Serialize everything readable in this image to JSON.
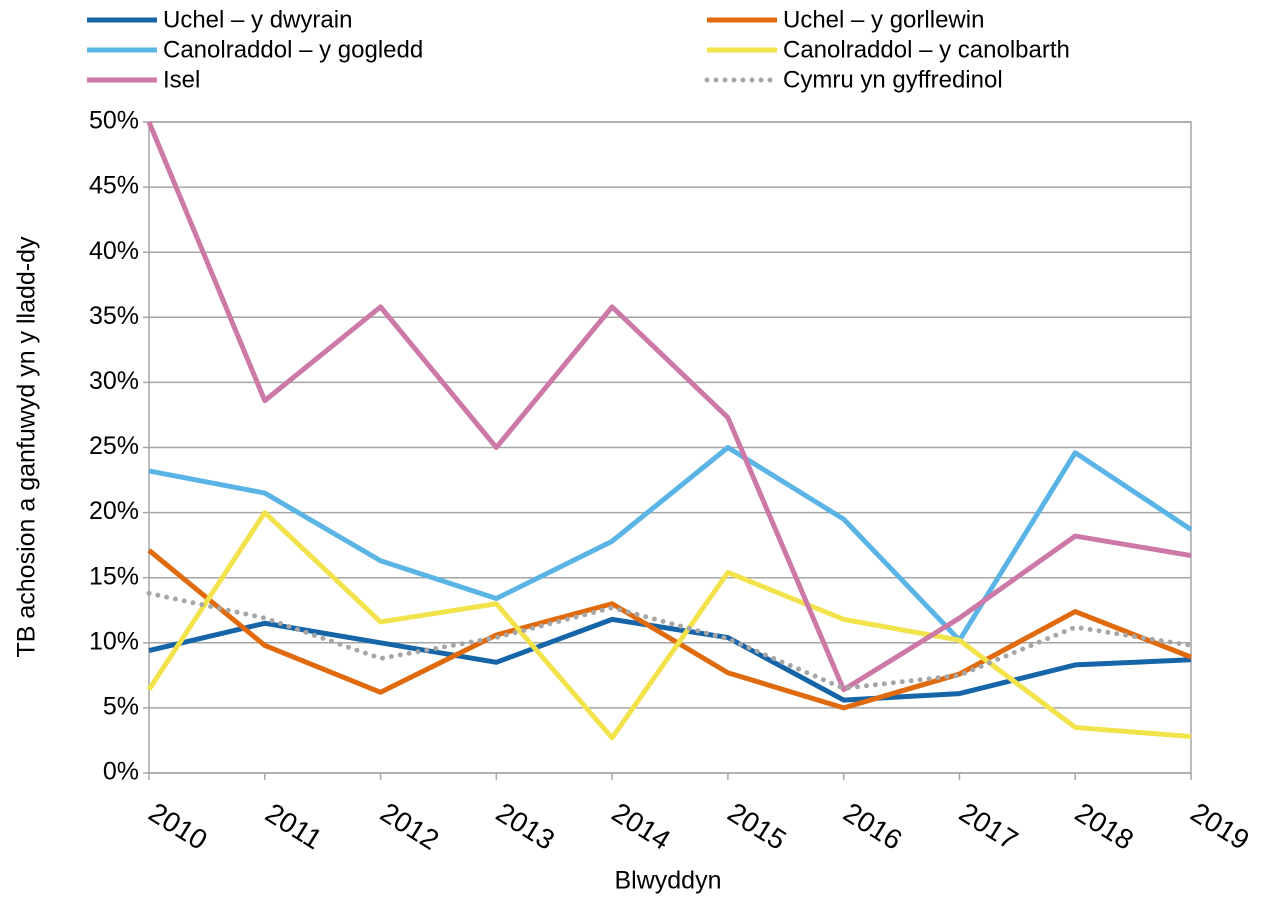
{
  "chart_data": {
    "type": "line",
    "x_label": "Blwyddyn",
    "y_label": "TB achosion a ganfuwyd yn y lladd-dy",
    "categories": [
      "2010",
      "2011",
      "2012",
      "2013",
      "2014",
      "2015",
      "2016",
      "2017",
      "2018",
      "2019"
    ],
    "series": [
      {
        "name": "Uchel – y dwyrain",
        "color": "#1565a8",
        "values": [
          9.4,
          11.5,
          10.0,
          8.5,
          11.8,
          10.4,
          5.6,
          6.1,
          8.3,
          8.7
        ]
      },
      {
        "name": "Uchel – y gorllewin",
        "color": "#e06a0e",
        "values": [
          17.1,
          9.8,
          6.2,
          10.6,
          13.0,
          7.7,
          5.0,
          7.6,
          12.4,
          8.9
        ]
      },
      {
        "name": "Canolraddol – y gogledd",
        "color": "#5ab4e6",
        "values": [
          23.2,
          21.5,
          16.3,
          13.4,
          17.8,
          25.0,
          19.5,
          10.2,
          24.6,
          18.7
        ]
      },
      {
        "name": "Canolraddol – y canolbarth",
        "color": "#f2e34c",
        "values": [
          6.4,
          20.0,
          11.6,
          13.0,
          2.7,
          15.4,
          11.8,
          10.2,
          3.5,
          2.8
        ]
      },
      {
        "name": "Isel",
        "color": "#cc79a7",
        "values": [
          50,
          28.6,
          35.8,
          25.0,
          35.8,
          27.3,
          6.4,
          11.9,
          18.2,
          16.7
        ]
      },
      {
        "name": "Cymru yn gyffredinol",
        "color": "#a6a6a6",
        "line_style": "dotted",
        "values": [
          13.8,
          11.9,
          8.8,
          10.4,
          12.7,
          10.3,
          6.5,
          7.5,
          11.2,
          9.8
        ]
      }
    ],
    "ylim": [
      0,
      50
    ],
    "yticks": [
      {
        "value": 0,
        "label": "0%"
      },
      {
        "value": 5,
        "label": "5%"
      },
      {
        "value": 10,
        "label": "10%"
      },
      {
        "value": 15,
        "label": "15%"
      },
      {
        "value": 20,
        "label": "20%"
      },
      {
        "value": 25,
        "label": "25%"
      },
      {
        "value": 30,
        "label": "30%"
      },
      {
        "value": 35,
        "label": "35%"
      },
      {
        "value": 40,
        "label": "40%"
      },
      {
        "value": 45,
        "label": "45%"
      },
      {
        "value": 50,
        "label": "50%"
      }
    ],
    "grid": true,
    "legend": "top"
  }
}
